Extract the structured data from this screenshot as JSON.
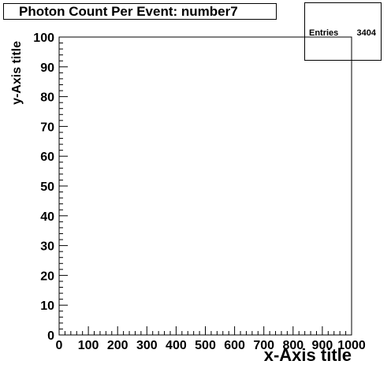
{
  "chart_data": {
    "type": "scatter",
    "title": "Photon Count Per Event: number7",
    "xlabel": "x-Axis title",
    "ylabel": "y-Axis title",
    "xlim": [
      0,
      1000
    ],
    "ylim": [
      0,
      100
    ],
    "x_ticks": [
      "0",
      "100",
      "200",
      "300",
      "400",
      "500",
      "600",
      "700",
      "800",
      "900",
      "1000"
    ],
    "y_ticks": [
      "0",
      "10",
      "20",
      "30",
      "40",
      "50",
      "60",
      "70",
      "80",
      "90",
      "100"
    ],
    "grid": false,
    "points": [],
    "stats": {
      "label": "Entries",
      "value": "3404"
    }
  }
}
